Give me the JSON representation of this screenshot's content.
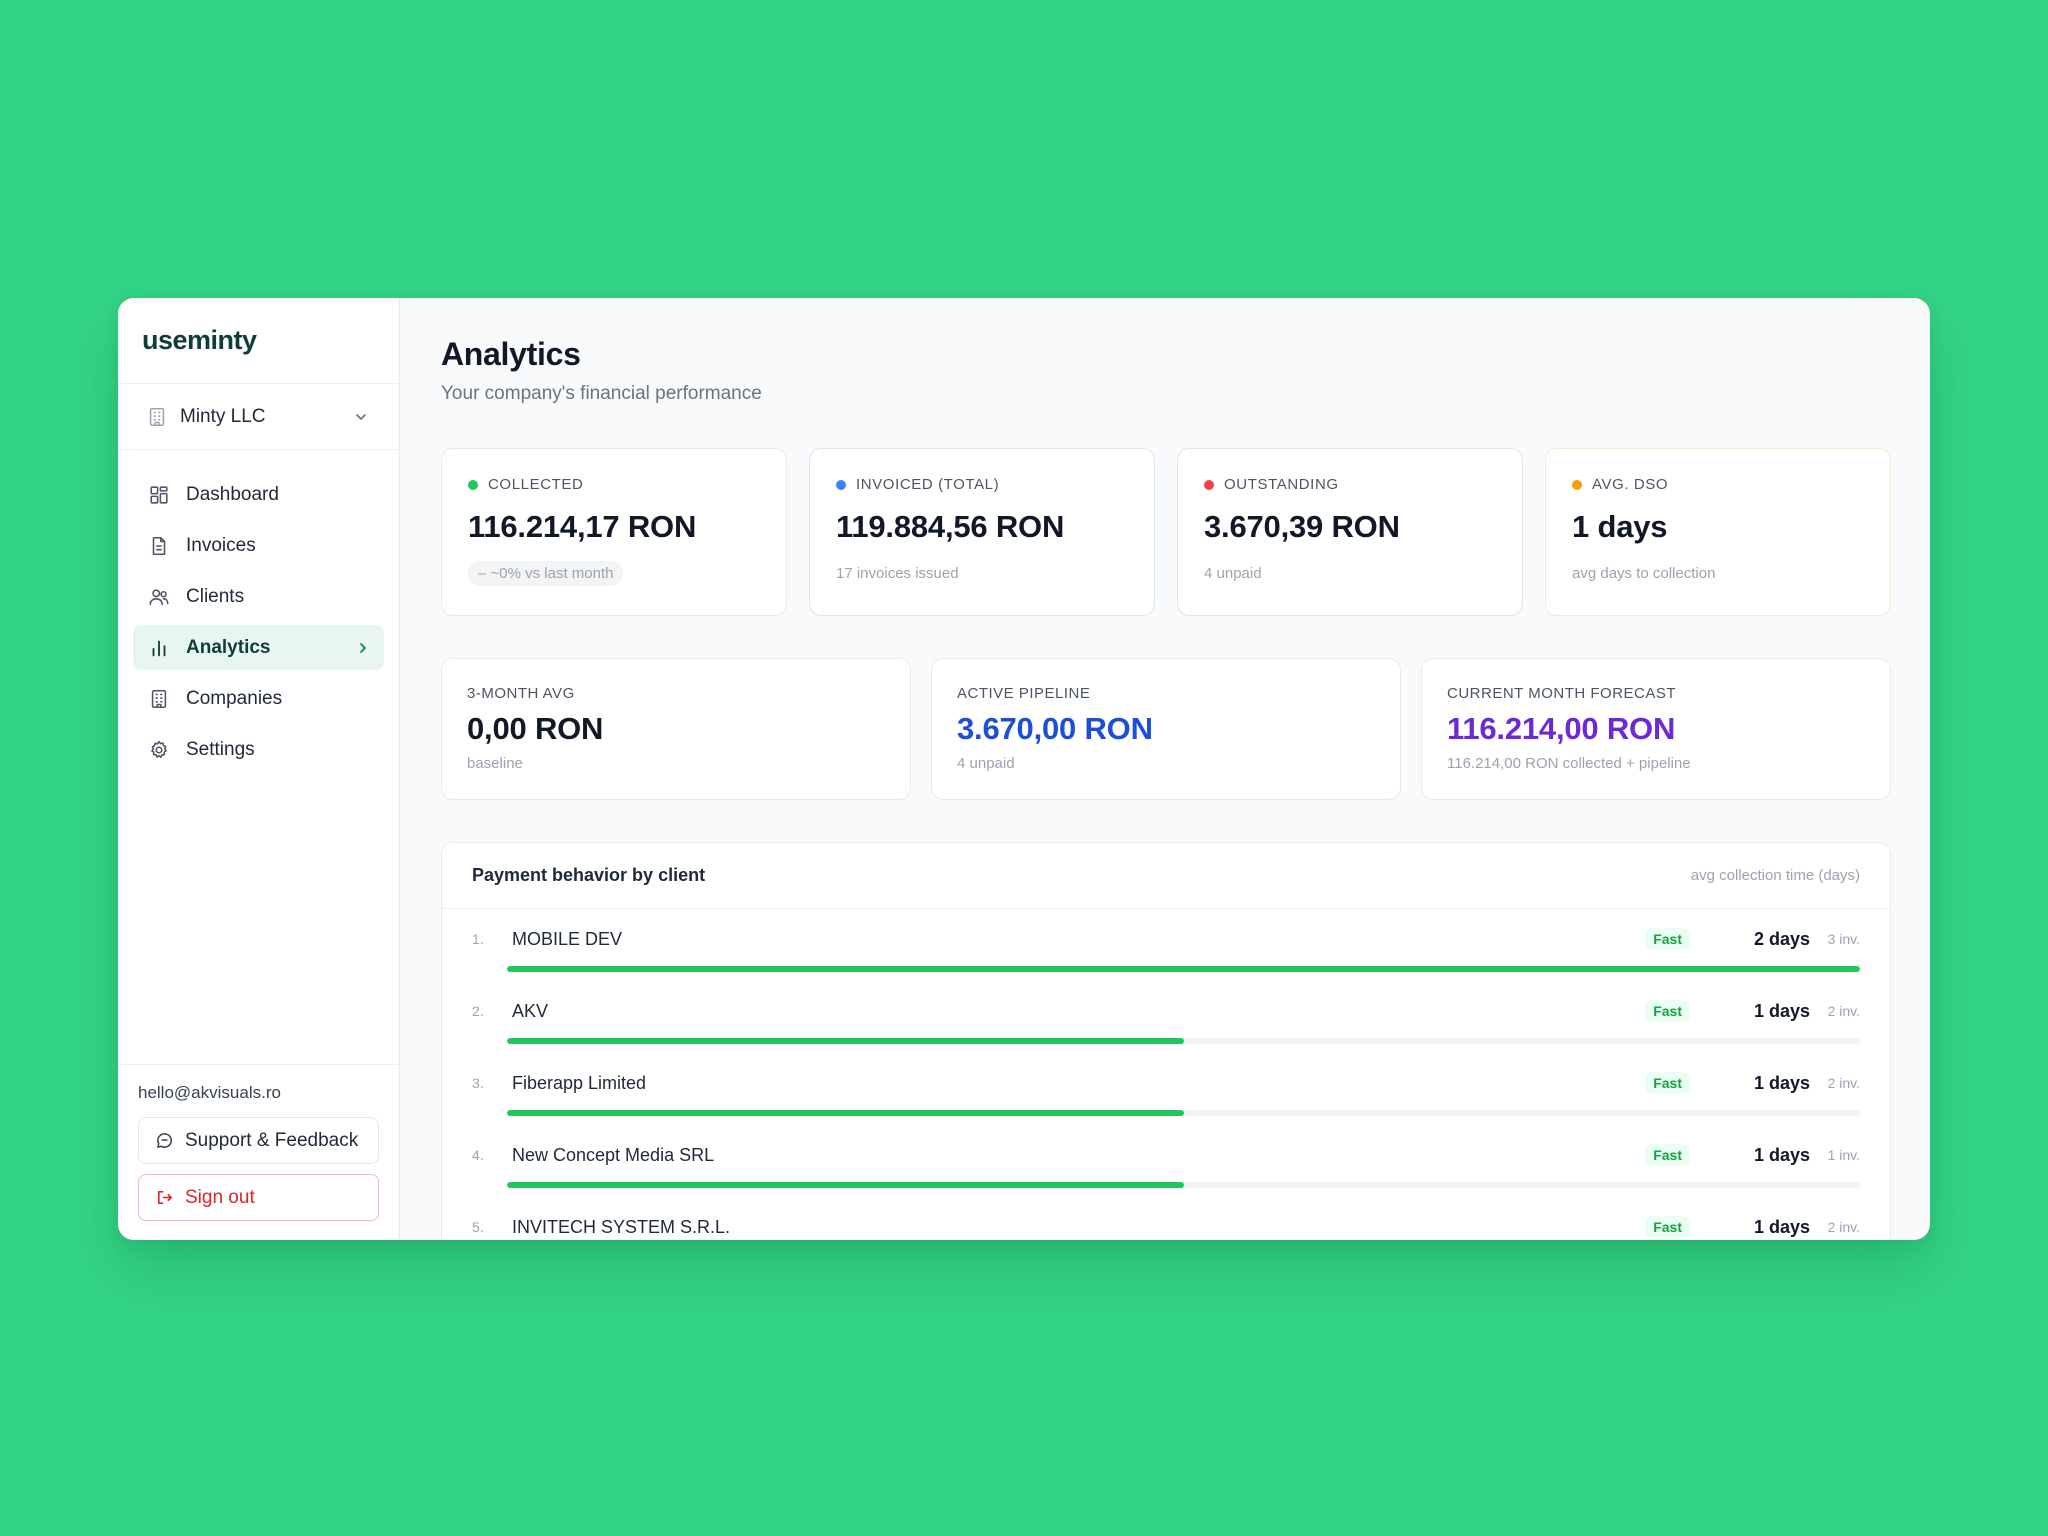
{
  "brand": {
    "logo": "useminty"
  },
  "company_selector": {
    "name": "Minty LLC"
  },
  "nav": {
    "items": [
      {
        "label": "Dashboard",
        "icon": "dashboard-icon"
      },
      {
        "label": "Invoices",
        "icon": "file-icon"
      },
      {
        "label": "Clients",
        "icon": "users-icon"
      },
      {
        "label": "Analytics",
        "icon": "bar-chart-icon",
        "active": true
      },
      {
        "label": "Companies",
        "icon": "building-icon"
      },
      {
        "label": "Settings",
        "icon": "gear-icon"
      }
    ]
  },
  "footer": {
    "email": "hello@akvisuals.ro",
    "support_label": "Support & Feedback",
    "signout_label": "Sign out"
  },
  "header": {
    "title": "Analytics",
    "subtitle": "Your company's financial performance"
  },
  "stats": [
    {
      "label": "COLLECTED",
      "value": "116.214,17 RON",
      "note": "– ~0% vs last month",
      "dot_color": "#22c55e"
    },
    {
      "label": "INVOICED (TOTAL)",
      "value": "119.884,56 RON",
      "note": "17 invoices issued",
      "dot_color": "#3b82f6"
    },
    {
      "label": "OUTSTANDING",
      "value": "3.670,39 RON",
      "note": "4 unpaid",
      "dot_color": "#ef4444"
    },
    {
      "label": "AVG. DSO",
      "value": "1 days",
      "note": "avg days to collection",
      "dot_color": "#f59e0b"
    }
  ],
  "stats2": [
    {
      "label": "3-MONTH AVG",
      "value": "0,00 RON",
      "note": "baseline",
      "color": "#111827"
    },
    {
      "label": "ACTIVE PIPELINE",
      "value": "3.670,00 RON",
      "note": "4 unpaid",
      "color": "#1d4ed8"
    },
    {
      "label": "CURRENT MONTH FORECAST",
      "value": "116.214,00 RON",
      "note": "116.214,00 RON collected + pipeline",
      "color": "#6d28d9"
    }
  ],
  "payment_behavior": {
    "title": "Payment behavior by client",
    "hint": "avg collection time (days)",
    "rows": [
      {
        "rank": "1.",
        "client": "MOBILE DEV",
        "badge": "Fast",
        "days": "2 days",
        "invoices": "3 inv.",
        "bar_fraction": 1.0
      },
      {
        "rank": "2.",
        "client": "AKV",
        "badge": "Fast",
        "days": "1 days",
        "invoices": "2 inv.",
        "bar_fraction": 0.5
      },
      {
        "rank": "3.",
        "client": "Fiberapp Limited",
        "badge": "Fast",
        "days": "1 days",
        "invoices": "2 inv.",
        "bar_fraction": 0.5
      },
      {
        "rank": "4.",
        "client": "New Concept Media SRL",
        "badge": "Fast",
        "days": "1 days",
        "invoices": "1 inv.",
        "bar_fraction": 0.5
      },
      {
        "rank": "5.",
        "client": "INVITECH SYSTEM S.R.L.",
        "badge": "Fast",
        "days": "1 days",
        "invoices": "2 inv.",
        "bar_fraction": 0.5
      }
    ]
  }
}
